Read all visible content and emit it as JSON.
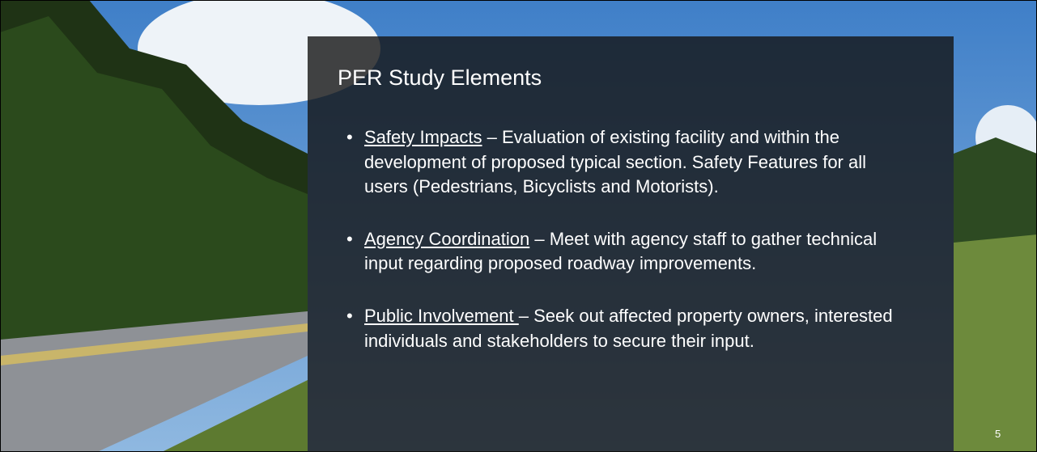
{
  "slide": {
    "title": "PER Study Elements",
    "bullets": [
      {
        "term": "Safety Impacts",
        "text": " – Evaluation of existing facility and within the development of proposed typical section. Safety Features for all users (Pedestrians, Bicyclists and Motorists)."
      },
      {
        "term": "Agency Coordination",
        "text": " – Meet with agency staff to gather technical input regarding proposed roadway improvements."
      },
      {
        "term": "Public Involvement ",
        "text": "– Seek out affected property owners, interested individuals and stakeholders to secure their input."
      }
    ],
    "page_number": 5
  }
}
